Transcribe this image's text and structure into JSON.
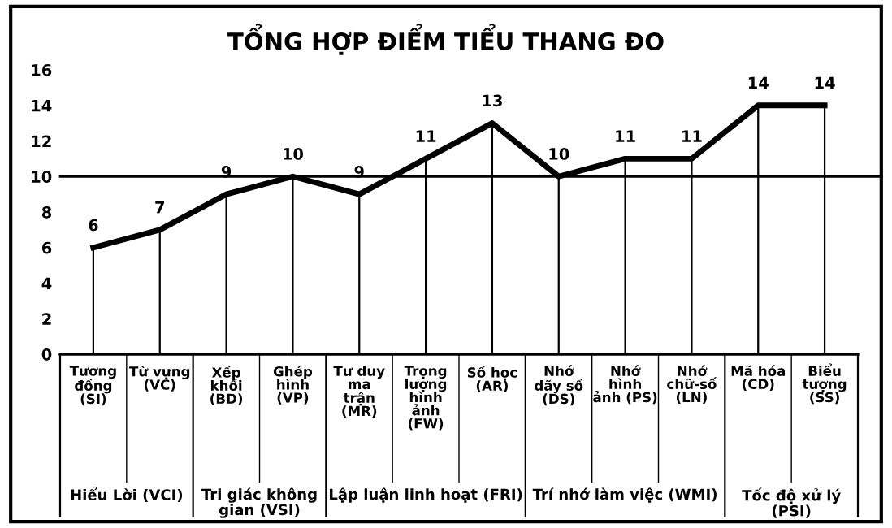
{
  "chart_data": {
    "type": "line",
    "title": "TỔNG HỢP ĐIỂM TIỂU THANG ĐO",
    "categories": [
      "Tương\nđồng\n(SI)",
      "Từ vựng\n(VC)",
      "Xếp\nkhối\n(BD)",
      "Ghép\nhình\n(VP)",
      "Tư duy\nma\ntrận\n(MR)",
      "Trọng\nlượng\nhình\nảnh\n(FW)",
      "Số học\n(AR)",
      "Nhớ\ndãy số\n(DS)",
      "Nhớ\nhình\nảnh (PS)",
      "Nhớ\nchữ-số\n(LN)",
      "Mã hóa\n(CD)",
      "Biểu\ntượng\n(SS)"
    ],
    "series": [
      {
        "color": "#000000",
        "values": [
          6,
          7,
          9,
          10,
          9,
          11,
          13,
          10,
          11,
          11,
          14,
          14
        ]
      }
    ],
    "ylim": [
      0,
      16
    ],
    "yticks": [
      0,
      2,
      4,
      6,
      8,
      10,
      12,
      14,
      16
    ],
    "ref_lines": [
      {
        "axis": "y",
        "value": 10,
        "color": "#000000"
      }
    ],
    "annotations": [
      "Hiểu Lời (VCI)",
      "Tri giác không\ngian (VSI)",
      "Lập luận linh hoạt (FRI)",
      "Trí nhớ làm việc (WMI)",
      "Tốc độ xử lý\n(PSI)"
    ],
    "data_labels": true,
    "grid": "x",
    "marker": "none",
    "line_style": "solid"
  }
}
